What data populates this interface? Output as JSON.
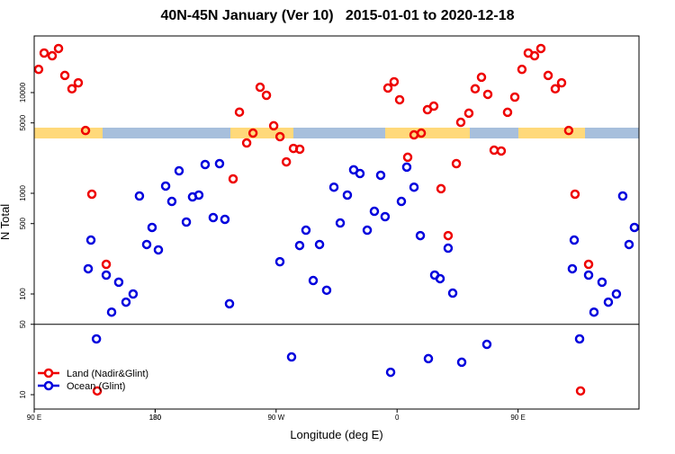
{
  "chart_data": {
    "type": "scatter",
    "title": "40N-45N January (Ver 10)   2015-01-01 to 2020-12-18",
    "x_label": "Longitude (deg E)",
    "y_label": "N Total",
    "xlim": [
      90,
      540
    ],
    "xticks": [
      {
        "value": 90,
        "label": "90 E"
      },
      180,
      {
        "value": 270,
        "label": "90 W"
      },
      {
        "value": 360,
        "label": "0"
      },
      {
        "value": 450,
        "label": "90 E"
      },
      180.0001
    ],
    "ylim": [
      7.2,
      36500
    ],
    "log_y": true,
    "yticks": [
      10,
      50,
      100,
      500,
      1000,
      5000,
      10000
    ],
    "hline": 50,
    "legend": "bottom-left",
    "series": [
      {
        "name": "Land (Nadir&Glint)",
        "color": "#ee0000",
        "x": [
          93.3,
          97.4,
          103.4,
          108.1,
          112.8,
          118.1,
          122.8,
          128.2,
          132.9,
          143.6,
          136.9,
          238.0,
          242.7,
          248.1,
          252.8,
          258.1,
          262.8,
          268.2,
          272.9,
          277.6,
          282.9,
          287.6,
          353.2,
          357.8,
          361.9,
          367.9,
          372.6,
          378.0,
          382.6,
          387.3,
          392.7,
          398.0,
          404.1,
          407.4,
          413.4,
          418.1,
          422.8,
          427.5,
          432.2,
          437.5,
          442.2,
          447.6,
          452.9,
          457.6,
          462.3,
          467.0,
          472.4,
          477.7,
          482.4,
          487.7,
          492.4,
          502.5,
          496.5
        ],
        "values": [
          17000,
          24700,
          23200,
          27400,
          14800,
          10900,
          12500,
          4200,
          980,
          197,
          10.9,
          1390,
          6400,
          3160,
          3960,
          11300,
          9400,
          4680,
          3650,
          2050,
          2790,
          2740,
          11100,
          12800,
          8490,
          2280,
          3800,
          3960,
          6760,
          7340,
          1110,
          380,
          1970,
          5070,
          6240,
          10900,
          14200,
          9600,
          2680,
          2630,
          6370,
          9020,
          17000,
          24700,
          23200,
          27400,
          14800,
          10900,
          12500,
          4200,
          980,
          197,
          10.9
        ]
      },
      {
        "name": "Ocean (Glint)",
        "color": "#0000dd",
        "x": [
          130.2,
          132.2,
          136.3,
          143.6,
          147.6,
          152.9,
          158.3,
          163.6,
          168.3,
          173.7,
          177.7,
          182.4,
          187.8,
          192.4,
          197.8,
          203.2,
          207.8,
          212.5,
          217.2,
          223.2,
          227.9,
          231.9,
          235.3,
          272.8,
          281.5,
          287.5,
          292.2,
          297.6,
          302.3,
          307.6,
          313.0,
          317.7,
          323.0,
          327.7,
          332.4,
          337.8,
          343.1,
          347.8,
          351.1,
          355.2,
          363.2,
          367.2,
          372.6,
          377.3,
          383.3,
          388.0,
          392.0,
          398.0,
          401.4,
          408.1,
          426.8,
          490.4,
          491.8,
          495.8,
          502.5,
          506.5,
          512.5,
          517.2,
          523.2,
          527.9,
          532.6,
          536.6
        ],
        "values": [
          178,
          343,
          35.8,
          154,
          66,
          131,
          83,
          100,
          940,
          310,
          458,
          274,
          1180,
          830,
          1670,
          518,
          920,
          960,
          1930,
          574,
          1970,
          551,
          80,
          209,
          23.7,
          303,
          430,
          136,
          310,
          109,
          1150,
          507,
          960,
          1710,
          1570,
          430,
          662,
          1510,
          586,
          16.7,
          830,
          1820,
          1150,
          380,
          22.8,
          154,
          142,
          285,
          102,
          21,
          31.6,
          178,
          343,
          35.8,
          154,
          66,
          131,
          83,
          100,
          940,
          310,
          458
        ]
      }
    ]
  }
}
